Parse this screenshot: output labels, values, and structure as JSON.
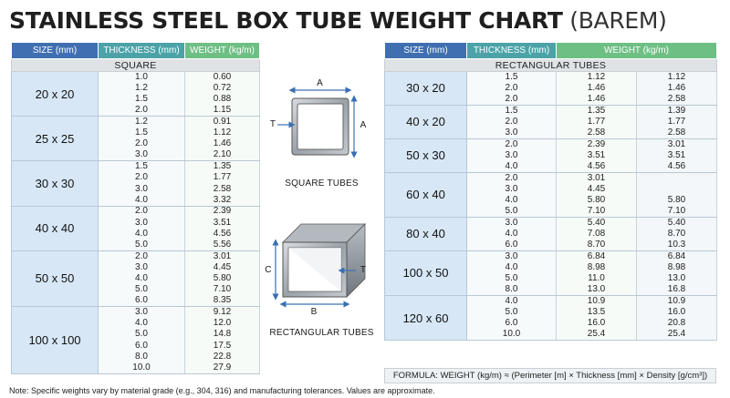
{
  "title": {
    "main": "STAINLESS STEEL BOX TUBE WEIGHT CHART",
    "sub": "(BAREM)"
  },
  "left": {
    "headers": {
      "size": "SIZE (mm)",
      "thickness": "THICKNESS (mm)",
      "weight": "WEIGHT (kg/m)"
    },
    "section": "SQUARE",
    "groups": [
      {
        "size": "20 x 20",
        "rows": [
          [
            "1.0",
            "0.60"
          ],
          [
            "1.2",
            "0.72"
          ],
          [
            "1.5",
            "0.88"
          ],
          [
            "2.0",
            "1.15"
          ]
        ]
      },
      {
        "size": "25 x 25",
        "rows": [
          [
            "1.2",
            "0.91"
          ],
          [
            "1.5",
            "1.12"
          ],
          [
            "2.0",
            "1.46"
          ],
          [
            "3.0",
            "2.10"
          ]
        ]
      },
      {
        "size": "30 x 30",
        "rows": [
          [
            "1.5",
            "1.35"
          ],
          [
            "2.0",
            "1.77"
          ],
          [
            "3.0",
            "2.58"
          ],
          [
            "4.0",
            "3.32"
          ]
        ]
      },
      {
        "size": "40 x 40",
        "rows": [
          [
            "2.0",
            "2.39"
          ],
          [
            "3.0",
            "3.51"
          ],
          [
            "4.0",
            "4.56"
          ],
          [
            "5.0",
            "5.56"
          ]
        ]
      },
      {
        "size": "50 x 50",
        "rows": [
          [
            "2.0",
            "3.01"
          ],
          [
            "3.0",
            "4.45"
          ],
          [
            "4.0",
            "5.80"
          ],
          [
            "5.0",
            "7.10"
          ],
          [
            "6.0",
            "8.35"
          ]
        ]
      },
      {
        "size": "100 x 100",
        "rows": [
          [
            "3.0",
            "9.12"
          ],
          [
            "4.0",
            "12.0"
          ],
          [
            "5.0",
            "14.8"
          ],
          [
            "6.0",
            "17.5"
          ],
          [
            "8.0",
            "22.8"
          ],
          [
            "10.0",
            "27.9"
          ]
        ]
      }
    ]
  },
  "right": {
    "headers": {
      "size": "SIZE (mm)",
      "thickness": "THICKNESS (mm)",
      "weight": "WEIGHT (kg/m)"
    },
    "section": "RECTANGULAR TUBES",
    "groups": [
      {
        "size": "30 x 20",
        "rows": [
          [
            "1.5",
            "1.12",
            "1.12"
          ],
          [
            "2.0",
            "1.46",
            "1.46"
          ],
          [
            "2.0",
            "1.46",
            "2.58"
          ]
        ]
      },
      {
        "size": "40 x 20",
        "rows": [
          [
            "1.5",
            "1.35",
            "1.39"
          ],
          [
            "2.0",
            "1.77",
            "1.77"
          ],
          [
            "3.0",
            "2.58",
            "2.58"
          ]
        ]
      },
      {
        "size": "50 x 30",
        "rows": [
          [
            "2.0",
            "2.39",
            "3.01"
          ],
          [
            "3.0",
            "3.51",
            "3.51"
          ],
          [
            "4.0",
            "4.56",
            "4.56"
          ]
        ]
      },
      {
        "size": "60 x 40",
        "rows": [
          [
            "2.0",
            "3.01",
            ""
          ],
          [
            "3.0",
            "4.45",
            ""
          ],
          [
            "4.0",
            "5.80",
            "5.80"
          ],
          [
            "5.0",
            "7.10",
            "7.10"
          ]
        ]
      },
      {
        "size": "80 x 40",
        "rows": [
          [
            "3.0",
            "5.40",
            "5.40"
          ],
          [
            "4.0",
            "7.08",
            "8.70"
          ],
          [
            "6.0",
            "8.70",
            "10.3"
          ]
        ]
      },
      {
        "size": "100 x 50",
        "rows": [
          [
            "3.0",
            "6.84",
            "6.84"
          ],
          [
            "4.0",
            "8.98",
            "8.98"
          ],
          [
            "5.0",
            "11.0",
            "13.0"
          ],
          [
            "8.0",
            "13.0",
            "16.8"
          ]
        ]
      },
      {
        "size": "120 x 60",
        "rows": [
          [
            "4.0",
            "10.9",
            "10.9"
          ],
          [
            "5.0",
            "13.5",
            "16.0"
          ],
          [
            "6.0",
            "16.0",
            "20.8"
          ],
          [
            "10.0",
            "25.4",
            "25.4"
          ]
        ]
      }
    ]
  },
  "diagrams": {
    "square_caption": "SQUARE TUBES",
    "rect_caption": "RECTANGULAR TUBES",
    "labels": {
      "a_top": "A",
      "a_side": "A",
      "t_square": "T",
      "b": "B",
      "c": "C",
      "t_rect": "T"
    }
  },
  "formula": "FORMULA: WEIGHT (kg/m) ≈ (Perimeter [m] × Thickness [mm] × Density [g/cm³])",
  "note": "Note: Specific weights vary by material grade (e.g., 304, 316) and manufacturing tolerances. Values are approximate.",
  "colors": {
    "size_header": "#3f6fb0",
    "thickness_header": "#4ba3a8",
    "weight_header": "#6ebf84",
    "size_cell": "#d7e7f6",
    "dimension_arrow": "#3a6fb3"
  }
}
